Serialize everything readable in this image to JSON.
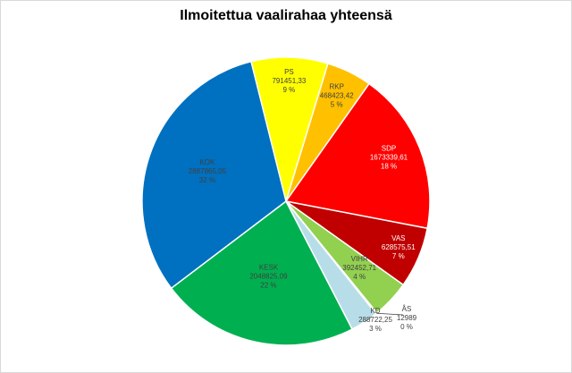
{
  "chart_data": {
    "type": "pie",
    "title": "Ilmoitettua vaalirahaa yhteensä",
    "slices": [
      {
        "party": "PS",
        "value": 791451.33,
        "value_text": "791451,33",
        "percent_text": "9 %",
        "color": "#ffff00",
        "label_color": "#404040"
      },
      {
        "party": "RKP",
        "value": 468423.42,
        "value_text": "468423,42",
        "percent_text": "5 %",
        "color": "#ffc000",
        "label_color": "#404040"
      },
      {
        "party": "SDP",
        "value": 1673339.61,
        "value_text": "1673339,61",
        "percent_text": "18 %",
        "color": "#ff0000",
        "label_color": "#ffffff"
      },
      {
        "party": "VAS",
        "value": 628575.51,
        "value_text": "628575,51",
        "percent_text": "7 %",
        "color": "#c00000",
        "label_color": "#ffffff"
      },
      {
        "party": "VIHR",
        "value": 392452.71,
        "value_text": "392452,71",
        "percent_text": "4 %",
        "color": "#92d050",
        "label_color": "#404040"
      },
      {
        "party": "ÅS",
        "value": 12989,
        "value_text": "12989",
        "percent_text": "0 %",
        "color": "#00b0f0",
        "label_color": "#404040"
      },
      {
        "party": "KD",
        "value": 288722.25,
        "value_text": "288722,25",
        "percent_text": "3 %",
        "color": "#b7dee8",
        "label_color": "#404040"
      },
      {
        "party": "KESK",
        "value": 2048825.09,
        "value_text": "2048825,09",
        "percent_text": "22 %",
        "color": "#00b050",
        "label_color": "#404040"
      },
      {
        "party": "KOK",
        "value": 2887865.05,
        "value_text": "2887865,05",
        "percent_text": "32 %",
        "color": "#0070c0",
        "label_color": "#404040"
      }
    ]
  }
}
